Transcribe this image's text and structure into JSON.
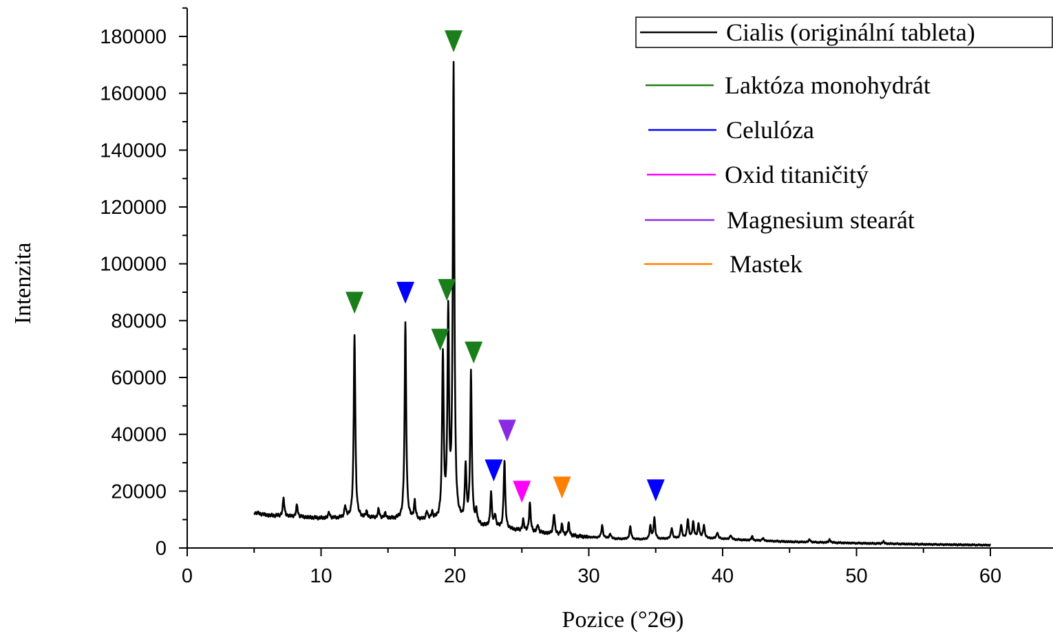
{
  "chart_data": {
    "type": "line",
    "xlabel": "Pozice (°2Θ)",
    "ylabel": "Intenzita",
    "xlim": [
      0,
      65
    ],
    "ylim": [
      0,
      190000
    ],
    "x_ticks": [
      0,
      10,
      20,
      30,
      40,
      50,
      60
    ],
    "y_ticks": [
      0,
      20000,
      40000,
      60000,
      80000,
      100000,
      120000,
      140000,
      160000,
      180000
    ],
    "grid": false,
    "legend_position": "top-right",
    "legend": [
      {
        "label": "Cialis (originální tableta)",
        "color": "#000000",
        "boxed": true
      },
      {
        "label": "Laktóza monohydrát",
        "color": "#1a7f1a"
      },
      {
        "label": "Celulóza",
        "color": "#0000ff"
      },
      {
        "label": "Oxid titaničitý",
        "color": "#ff00ff"
      },
      {
        "label": "Magnesium stearát",
        "color": "#8a2be2"
      },
      {
        "label": "Mastek",
        "color": "#ff8000"
      }
    ],
    "series": [
      {
        "name": "Cialis (originální tableta)",
        "color": "#000000",
        "baseline": [
          [
            5,
            12500
          ],
          [
            6,
            11500
          ],
          [
            8,
            11000
          ],
          [
            10,
            10500
          ],
          [
            12,
            10500
          ],
          [
            14,
            10500
          ],
          [
            16,
            10000
          ],
          [
            18,
            9500
          ],
          [
            20,
            9000
          ],
          [
            22,
            7500
          ],
          [
            24,
            6500
          ],
          [
            26,
            5500
          ],
          [
            28,
            4500
          ],
          [
            30,
            3800
          ],
          [
            32,
            3200
          ],
          [
            34,
            3000
          ],
          [
            36,
            3200
          ],
          [
            38,
            3500
          ],
          [
            40,
            3200
          ],
          [
            42,
            2700
          ],
          [
            45,
            2200
          ],
          [
            50,
            1700
          ],
          [
            55,
            1300
          ],
          [
            60,
            1000
          ]
        ],
        "peaks": [
          [
            7.2,
            17500
          ],
          [
            8.2,
            15000
          ],
          [
            10.6,
            12500
          ],
          [
            11.8,
            14500
          ],
          [
            12.5,
            75000
          ],
          [
            13.4,
            12500
          ],
          [
            14.3,
            13500
          ],
          [
            14.8,
            12000
          ],
          [
            16.3,
            79000
          ],
          [
            17.0,
            16000
          ],
          [
            17.9,
            12500
          ],
          [
            18.3,
            12000
          ],
          [
            19.1,
            67000
          ],
          [
            19.5,
            80000
          ],
          [
            19.9,
            168000
          ],
          [
            20.8,
            28000
          ],
          [
            21.2,
            61000
          ],
          [
            21.6,
            12500
          ],
          [
            22.7,
            19000
          ],
          [
            23.0,
            11500
          ],
          [
            23.7,
            30500
          ],
          [
            25.1,
            9500
          ],
          [
            25.6,
            15500
          ],
          [
            26.2,
            8000
          ],
          [
            27.4,
            12000
          ],
          [
            28.0,
            8000
          ],
          [
            28.5,
            8500
          ],
          [
            31.0,
            8000
          ],
          [
            31.6,
            5000
          ],
          [
            33.1,
            7500
          ],
          [
            34.6,
            7500
          ],
          [
            34.9,
            10500
          ],
          [
            36.2,
            7000
          ],
          [
            36.9,
            8000
          ],
          [
            37.4,
            10000
          ],
          [
            37.8,
            9000
          ],
          [
            38.2,
            8500
          ],
          [
            38.6,
            8000
          ],
          [
            39.6,
            5500
          ],
          [
            40.6,
            4500
          ],
          [
            42.2,
            4000
          ],
          [
            43.0,
            3500
          ],
          [
            46.5,
            3000
          ],
          [
            48.0,
            3000
          ],
          [
            52.0,
            2300
          ]
        ]
      }
    ],
    "markers": [
      {
        "label": "Laktóza monohydrát",
        "x": 12.5,
        "y": 87000,
        "color": "#1a7f1a"
      },
      {
        "label": "Celulóza",
        "x": 16.3,
        "y": 90500,
        "color": "#0000ff"
      },
      {
        "label": "Laktóza monohydrát",
        "x": 18.9,
        "y": 74000,
        "color": "#1a7f1a"
      },
      {
        "label": "Laktóza monohydrát",
        "x": 19.4,
        "y": 91500,
        "color": "#1a7f1a"
      },
      {
        "label": "Laktóza monohydrát",
        "x": 19.9,
        "y": 179000,
        "color": "#1a7f1a"
      },
      {
        "label": "Laktóza monohydrát",
        "x": 21.4,
        "y": 69500,
        "color": "#1a7f1a"
      },
      {
        "label": "Celulóza",
        "x": 22.9,
        "y": 28000,
        "color": "#0000ff"
      },
      {
        "label": "Magnesium stearát",
        "x": 23.9,
        "y": 42000,
        "color": "#8a2be2"
      },
      {
        "label": "Oxid titaničitý",
        "x": 25.0,
        "y": 20500,
        "color": "#ff00ff"
      },
      {
        "label": "Mastek",
        "x": 28.0,
        "y": 22000,
        "color": "#ff8000"
      },
      {
        "label": "Celulóza",
        "x": 35.0,
        "y": 21000,
        "color": "#0000ff"
      }
    ]
  }
}
